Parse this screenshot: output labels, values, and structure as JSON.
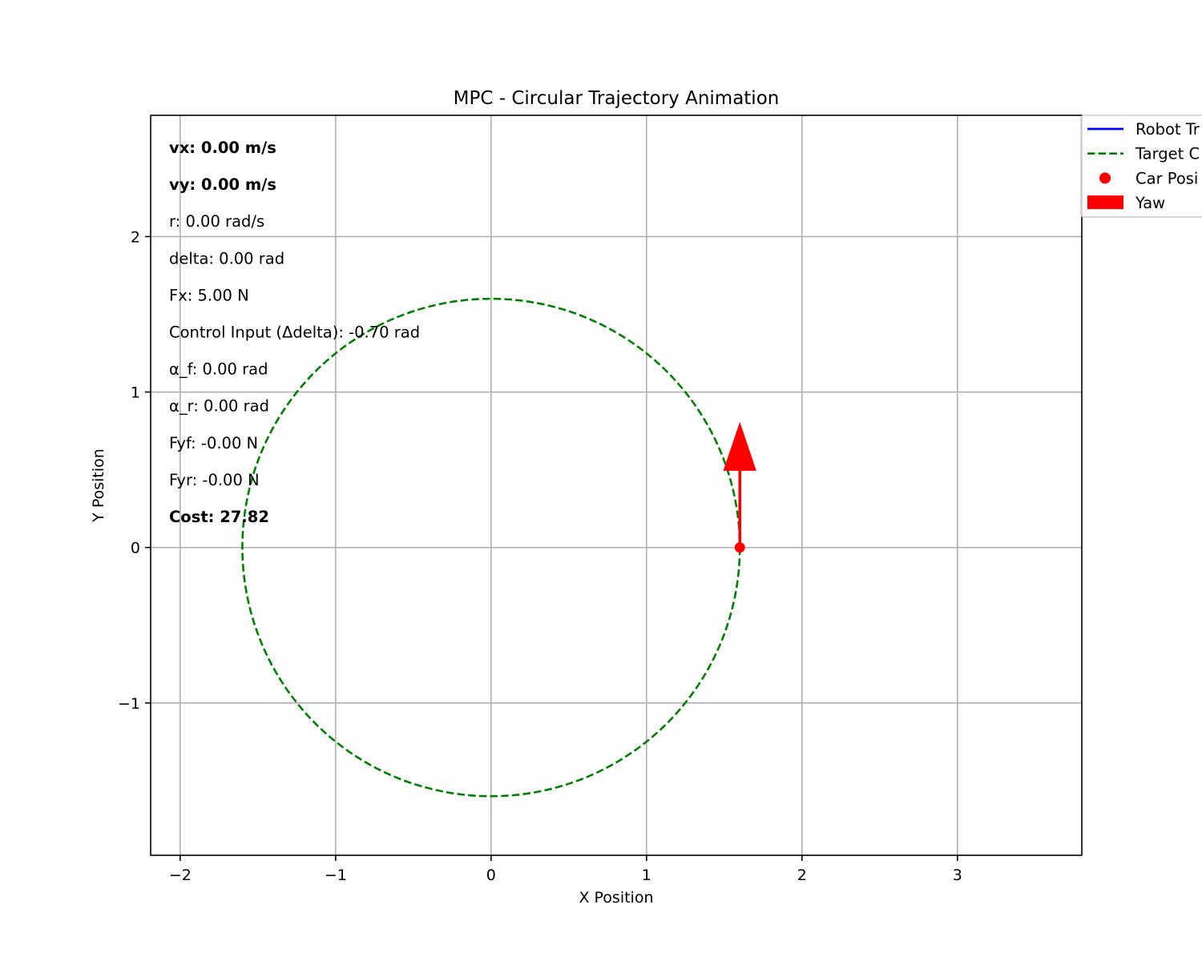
{
  "chart_data": {
    "type": "line",
    "title": "MPC - Circular Trajectory Animation",
    "xlabel": "X Position",
    "ylabel": "Y Position",
    "xlim": [
      -2.19,
      3.8
    ],
    "ylim": [
      -1.98,
      2.78
    ],
    "grid": true,
    "x_ticks": [
      -2,
      -1,
      0,
      1,
      2,
      3
    ],
    "x_tick_labels": [
      "−2",
      "−1",
      "0",
      "1",
      "2",
      "3"
    ],
    "y_ticks": [
      -1,
      0,
      1,
      2
    ],
    "y_tick_labels": [
      "−1",
      "0",
      "1",
      "2"
    ],
    "series": [
      {
        "name": "Robot Tr",
        "color": "#0000ff",
        "style": "solid",
        "x": [],
        "y": []
      },
      {
        "name": "Target C",
        "color": "#008000",
        "style": "dashed",
        "circle": {
          "cx": 0,
          "cy": 0,
          "r": 1.6
        }
      },
      {
        "name": "Car Posi",
        "color": "#ff0000",
        "style": "marker",
        "x": [
          1.6
        ],
        "y": [
          0
        ]
      },
      {
        "name": "Yaw",
        "color": "#ff0000",
        "style": "arrow",
        "arrow": {
          "x": 1.6,
          "y": 0,
          "dx": 0,
          "dy": 0.8
        }
      }
    ],
    "legend": {
      "placement": "top-right, outside",
      "entries": [
        "Robot Tr",
        "Target C",
        "Car Posi",
        "Yaw"
      ]
    },
    "annotations": [
      {
        "text": "vx: 0.00 m/s",
        "bold": true
      },
      {
        "text": "vy: 0.00 m/s",
        "bold": true
      },
      {
        "text": "r: 0.00 rad/s",
        "bold": false
      },
      {
        "text": "delta: 0.00 rad",
        "bold": false
      },
      {
        "text": "Fx: 5.00 N",
        "bold": false
      },
      {
        "text": "Control Input (Δdelta): -0.70 rad",
        "bold": false
      },
      {
        "text": "α_f: 0.00 rad",
        "bold": false
      },
      {
        "text": "α_r: 0.00 rad",
        "bold": false
      },
      {
        "text": "Fyf: -0.00 N",
        "bold": false
      },
      {
        "text": "Fyr: -0.00 N",
        "bold": false
      },
      {
        "text": "Cost: 27.82",
        "bold": true
      }
    ]
  }
}
